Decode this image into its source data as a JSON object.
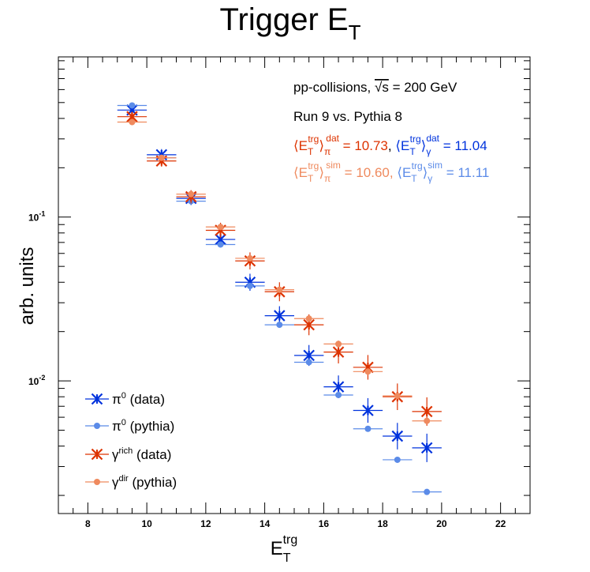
{
  "chart_data": {
    "type": "scatter",
    "title": "Trigger E",
    "title_sub": "T",
    "xlabel": "E",
    "xlabel_sub": "T",
    "xlabel_sup": "trg",
    "ylabel": "arb. units",
    "xlim": [
      7,
      23
    ],
    "ylim": [
      0.00155,
      0.95
    ],
    "yscale": "log",
    "x_ticks": [
      "8",
      "10",
      "12",
      "14",
      "16",
      "18",
      "20",
      "22"
    ],
    "y_ticks": [
      {
        "base": "10",
        "exp": "-1",
        "value": 0.1
      },
      {
        "base": "10",
        "exp": "-2",
        "value": 0.01
      }
    ],
    "x_bin_halfwidth": 0.5,
    "annotations": {
      "collisions_prefix": "pp-collisions, ",
      "collisions_sqrt": "√s",
      "collisions_suffix": " = 200 GeV",
      "run": "Run 9 vs. Pythia 8",
      "mean_data": {
        "pi_value": "10.73",
        "gamma_value": "11.04",
        "sup": "trg",
        "sub_T": "T",
        "tag": "dat",
        "pi_sym": "π",
        "gamma_sym": "γ",
        "eq": " = ",
        "sep": ", "
      },
      "mean_sim": {
        "pi_value": "10.60",
        "gamma_value": "11.11",
        "sup": "trg",
        "sub_T": "T",
        "tag": "sim",
        "pi_sym": "π",
        "gamma_sym": "γ",
        "eq": " = ",
        "sep": ", "
      }
    },
    "legend_position": "bottom-left",
    "series": [
      {
        "name": "π0 (data)",
        "legend": {
          "sym": "π",
          "sup": "0",
          "text": " (data)"
        },
        "color": "#0033dd",
        "marker": "star",
        "x": [
          9.5,
          10.5,
          11.5,
          12.5,
          13.5,
          14.5,
          15.5,
          16.5,
          17.5,
          18.5,
          19.5
        ],
        "y": [
          0.45,
          0.24,
          0.13,
          0.073,
          0.04,
          0.025,
          0.0143,
          0.0092,
          0.0066,
          0.0046,
          0.0039
        ]
      },
      {
        "name": "π0 (pythia)",
        "legend": {
          "sym": "π",
          "sup": "0",
          "text": " (pythia)"
        },
        "color": "#5b8be8",
        "marker": "circle",
        "x": [
          9.5,
          10.5,
          11.5,
          12.5,
          13.5,
          14.5,
          15.5,
          16.5,
          17.5,
          18.5,
          19.5
        ],
        "y": [
          0.48,
          0.23,
          0.125,
          0.068,
          0.038,
          0.022,
          0.013,
          0.0082,
          0.0051,
          0.0033,
          0.0021
        ]
      },
      {
        "name": "γrich (data)",
        "legend": {
          "sym": "γ",
          "sup": "rich",
          "text": " (data)"
        },
        "color": "#dd3300",
        "marker": "star",
        "x": [
          9.5,
          10.5,
          11.5,
          12.5,
          13.5,
          14.5,
          15.5,
          16.5,
          17.5,
          18.5,
          19.5
        ],
        "y": [
          0.41,
          0.22,
          0.133,
          0.083,
          0.054,
          0.035,
          0.022,
          0.015,
          0.0121,
          0.008,
          0.0065
        ]
      },
      {
        "name": "γdir (pythia)",
        "legend": {
          "sym": "γ",
          "sup": "dir",
          "text": " (pythia)"
        },
        "color": "#ef8a5e",
        "marker": "circle",
        "x": [
          9.5,
          10.5,
          11.5,
          12.5,
          13.5,
          14.5,
          15.5,
          16.5,
          17.5,
          18.5,
          19.5
        ],
        "y": [
          0.38,
          0.23,
          0.138,
          0.087,
          0.056,
          0.036,
          0.024,
          0.0168,
          0.0114,
          0.0081,
          0.0057
        ]
      }
    ]
  }
}
